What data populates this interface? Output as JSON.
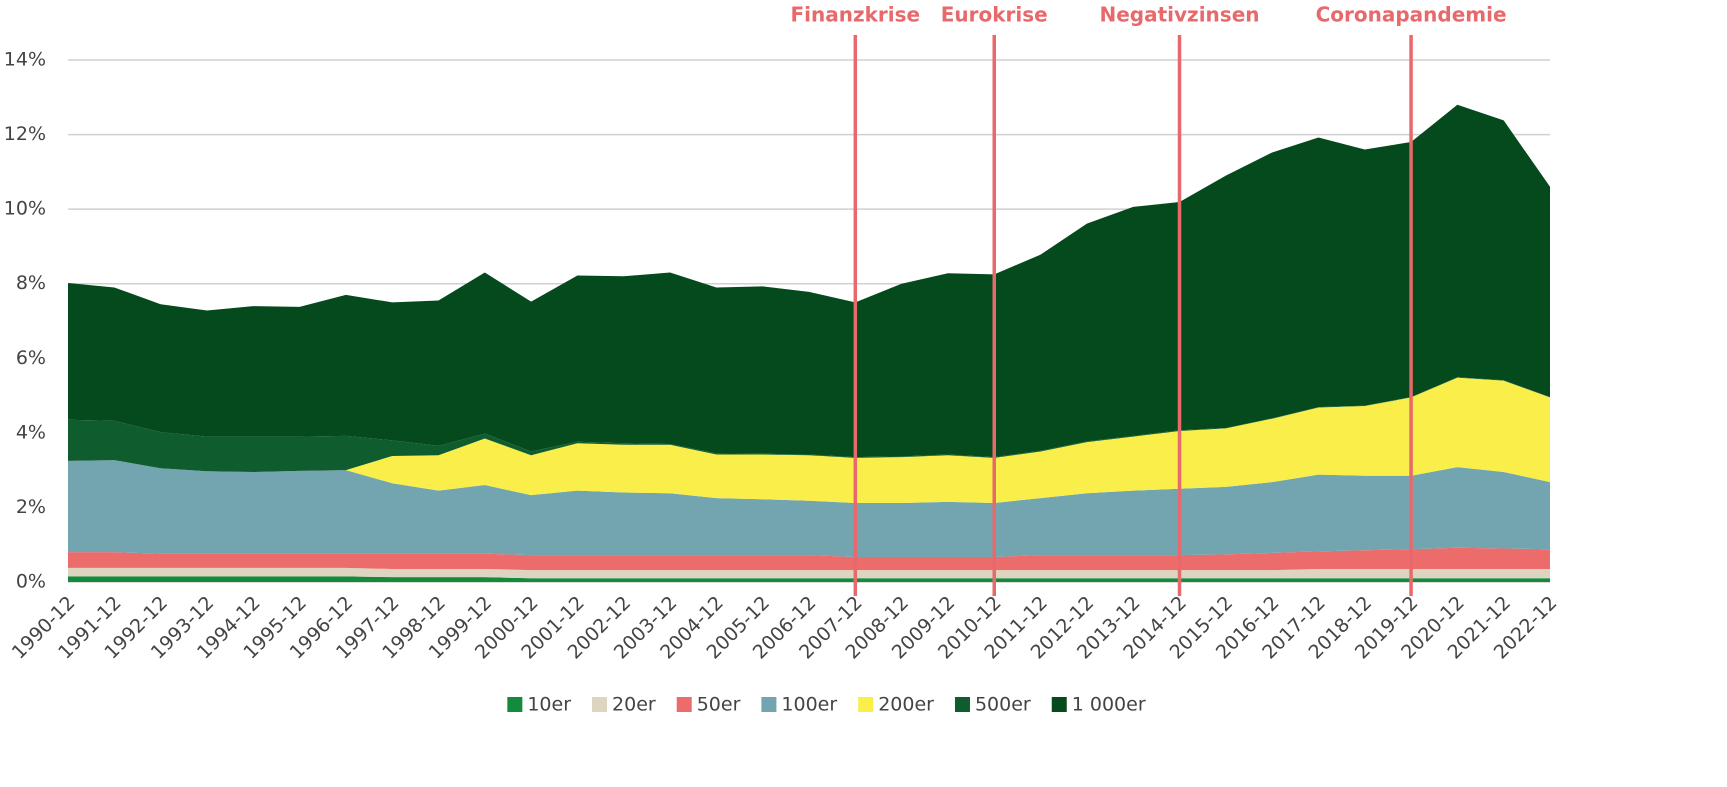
{
  "chart_data": {
    "type": "stacked_area",
    "categories": [
      "1990-12",
      "1991-12",
      "1992-12",
      "1993-12",
      "1994-12",
      "1995-12",
      "1996-12",
      "1997-12",
      "1998-12",
      "1999-12",
      "2000-12",
      "2001-12",
      "2002-12",
      "2003-12",
      "2004-12",
      "2005-12",
      "2006-12",
      "2007-12",
      "2008-12",
      "2009-12",
      "2010-12",
      "2011-12",
      "2012-12",
      "2013-12",
      "2014-12",
      "2015-12",
      "2016-12",
      "2017-12",
      "2018-12",
      "2019-12",
      "2020-12",
      "2021-12",
      "2022-12"
    ],
    "series": [
      {
        "name": "10er",
        "color": "#138a3c",
        "values": [
          0.15,
          0.15,
          0.15,
          0.15,
          0.15,
          0.15,
          0.15,
          0.13,
          0.13,
          0.13,
          0.1,
          0.1,
          0.1,
          0.1,
          0.1,
          0.1,
          0.1,
          0.1,
          0.1,
          0.1,
          0.1,
          0.1,
          0.1,
          0.1,
          0.1,
          0.1,
          0.1,
          0.1,
          0.1,
          0.1,
          0.1,
          0.1,
          0.1
        ]
      },
      {
        "name": "20er",
        "color": "#ddd5bf",
        "values": [
          0.23,
          0.23,
          0.23,
          0.23,
          0.23,
          0.23,
          0.23,
          0.22,
          0.22,
          0.22,
          0.22,
          0.22,
          0.22,
          0.22,
          0.22,
          0.22,
          0.22,
          0.22,
          0.22,
          0.22,
          0.22,
          0.22,
          0.22,
          0.22,
          0.22,
          0.22,
          0.22,
          0.25,
          0.25,
          0.25,
          0.25,
          0.25,
          0.25
        ]
      },
      {
        "name": "50er",
        "color": "#ec6b6b",
        "values": [
          0.42,
          0.42,
          0.38,
          0.38,
          0.38,
          0.38,
          0.38,
          0.41,
          0.41,
          0.41,
          0.4,
          0.4,
          0.4,
          0.4,
          0.4,
          0.4,
          0.4,
          0.35,
          0.35,
          0.35,
          0.35,
          0.4,
          0.4,
          0.4,
          0.4,
          0.42,
          0.46,
          0.47,
          0.5,
          0.53,
          0.57,
          0.55,
          0.53
        ]
      },
      {
        "name": "100er",
        "color": "#72a5b0",
        "values": [
          2.45,
          2.47,
          2.29,
          2.21,
          2.19,
          2.22,
          2.24,
          1.89,
          1.69,
          1.84,
          1.61,
          1.73,
          1.68,
          1.66,
          1.53,
          1.5,
          1.46,
          1.45,
          1.45,
          1.48,
          1.45,
          1.53,
          1.66,
          1.73,
          1.78,
          1.81,
          1.9,
          2.06,
          2.0,
          1.97,
          2.16,
          2.05,
          1.8
        ]
      },
      {
        "name": "200er",
        "color": "#f9ee4a",
        "values": [
          0,
          0,
          0,
          0,
          0,
          0,
          0,
          0.73,
          0.95,
          1.25,
          1.07,
          1.27,
          1.28,
          1.3,
          1.17,
          1.2,
          1.22,
          1.21,
          1.23,
          1.25,
          1.21,
          1.25,
          1.37,
          1.45,
          1.55,
          1.57,
          1.7,
          1.8,
          1.87,
          2.1,
          2.4,
          2.45,
          2.27
        ]
      },
      {
        "name": "500er",
        "color": "#0f5c2e",
        "values": [
          1.1,
          1.05,
          0.97,
          0.93,
          0.95,
          0.92,
          0.92,
          0.42,
          0.25,
          0.13,
          0.1,
          0.04,
          0.04,
          0.02,
          0.03,
          0.02,
          0.02,
          0.02,
          0.02,
          0.02,
          0.02,
          0.02,
          0.02,
          0.02,
          0.02,
          0.01,
          0.01,
          0.01,
          0.01,
          0.01,
          0.01,
          0.01,
          0.01
        ]
      },
      {
        "name": "1 000er",
        "color": "#044a1c",
        "values": [
          3.67,
          3.58,
          3.43,
          3.38,
          3.5,
          3.48,
          3.78,
          3.7,
          3.9,
          4.32,
          4.02,
          4.46,
          4.48,
          4.6,
          4.45,
          4.49,
          4.36,
          4.15,
          4.63,
          4.86,
          4.9,
          5.26,
          5.84,
          6.14,
          6.12,
          6.77,
          7.13,
          7.23,
          6.87,
          6.84,
          7.31,
          6.97,
          5.64
        ]
      }
    ],
    "ylim": [
      0,
      14
    ],
    "yticks": [
      {
        "value": 0,
        "label": "0%"
      },
      {
        "value": 2,
        "label": "2%"
      },
      {
        "value": 4,
        "label": "4%"
      },
      {
        "value": 6,
        "label": "6%"
      },
      {
        "value": 8,
        "label": "8%"
      },
      {
        "value": 10,
        "label": "10%"
      },
      {
        "value": 12,
        "label": "12%"
      },
      {
        "value": 14,
        "label": "14%"
      }
    ],
    "grid": true,
    "legend": "bottom",
    "annotations": [
      {
        "label": "Finanzkrise",
        "x": "2007-12",
        "color": "#e8696b"
      },
      {
        "label": "Eurokrise",
        "x": "2010-12",
        "color": "#e8696b"
      },
      {
        "label": "Negativzinsen",
        "x": "2014-12",
        "color": "#e8696b"
      },
      {
        "label": "Coronapandemie",
        "x": "2019-12",
        "color": "#e8696b"
      }
    ]
  }
}
